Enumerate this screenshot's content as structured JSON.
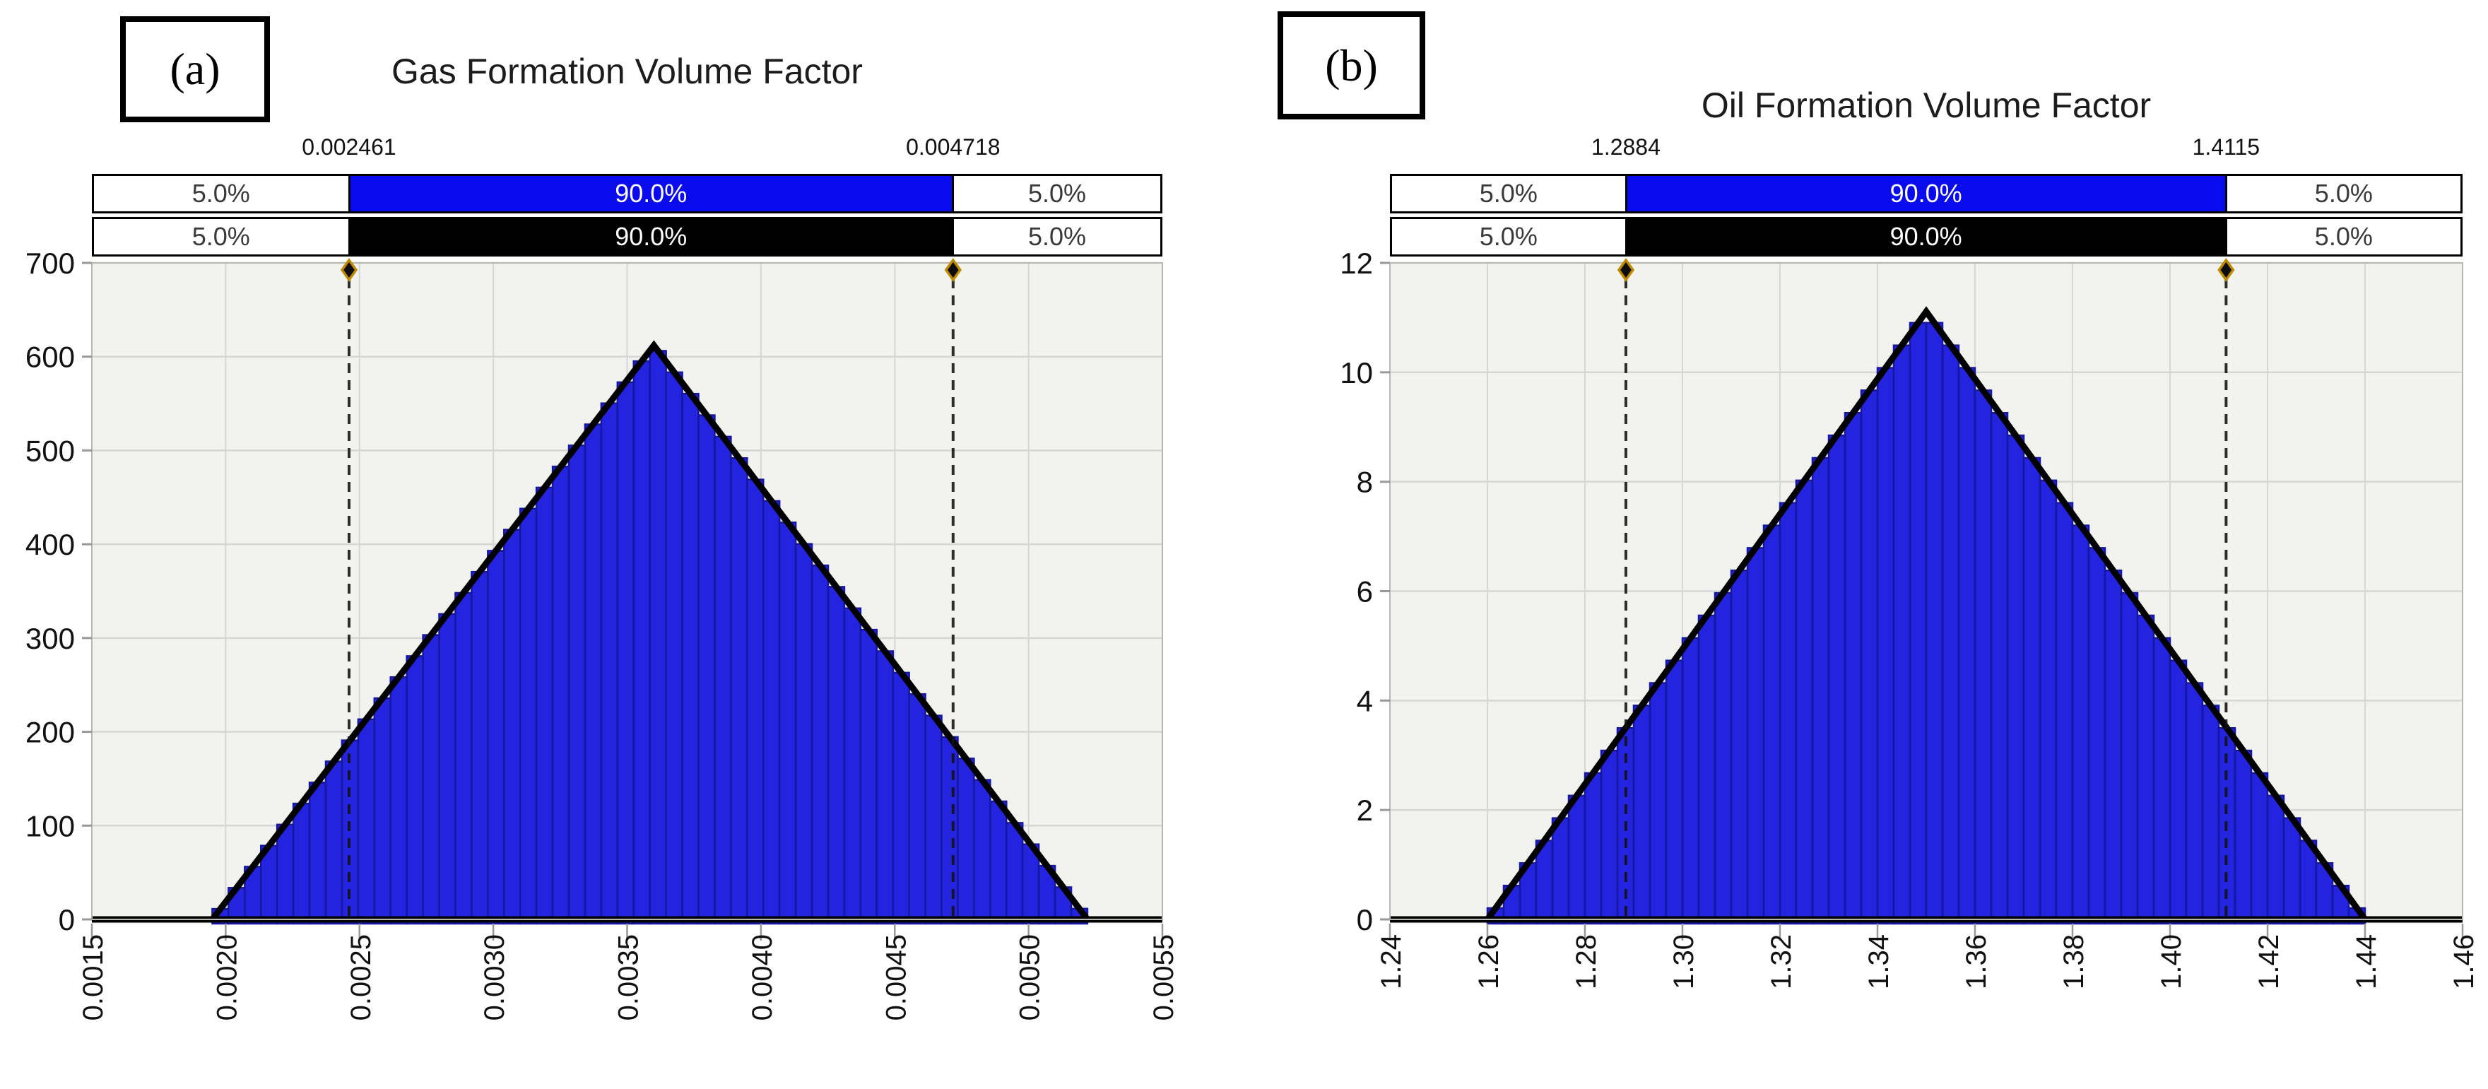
{
  "figure": {
    "background": "#ffffff"
  },
  "chart_data": [
    {
      "type": "bar",
      "subtype": "triangular-histogram",
      "panel_label": "(a)",
      "title": "Gas Formation Volume Factor",
      "x_axis": {
        "min": 0.0015,
        "max": 0.0055,
        "tick_labels": [
          "0.0015",
          "0.0020",
          "0.0025",
          "0.0030",
          "0.0035",
          "0.0040",
          "0.0045",
          "0.0050",
          "0.0055"
        ]
      },
      "y_axis": {
        "min": 0,
        "max": 700,
        "tick_labels": [
          "0",
          "100",
          "200",
          "300",
          "400",
          "500",
          "600",
          "700"
        ]
      },
      "distribution": {
        "shape": "triangular",
        "min": 0.00195,
        "mode": 0.0036,
        "max": 0.00522,
        "peak_height": 612,
        "bins": 54
      },
      "delimiters": {
        "low": 0.002461,
        "high": 0.004718,
        "low_label": "0.002461",
        "high_label": "0.004718"
      },
      "band_rows": [
        {
          "left": "5.0%",
          "middle": "90.0%",
          "right": "5.0%",
          "middle_bg": "#0a0aee",
          "middle_text": "#ffffff"
        },
        {
          "left": "5.0%",
          "middle": "90.0%",
          "right": "5.0%",
          "middle_bg": "#000000",
          "middle_text": "#ffffff"
        }
      ],
      "colors": {
        "bar_fill": "#2323e0",
        "bar_edge": "#17179e",
        "outline": "#000000",
        "plot_bg": "#f2f2ef",
        "grid": "#d6d6d6",
        "diamond_fill": "#0d0d0d",
        "diamond_edge": "#bf8900"
      }
    },
    {
      "type": "bar",
      "subtype": "triangular-histogram",
      "panel_label": "(b)",
      "title": "Oil Formation Volume Factor",
      "x_axis": {
        "min": 1.24,
        "max": 1.46,
        "tick_labels": [
          "1.24",
          "1.26",
          "1.28",
          "1.30",
          "1.32",
          "1.34",
          "1.36",
          "1.38",
          "1.40",
          "1.42",
          "1.44",
          "1.46"
        ]
      },
      "y_axis": {
        "min": 0,
        "max": 12,
        "tick_labels": [
          "0",
          "2",
          "4",
          "6",
          "8",
          "10",
          "12"
        ]
      },
      "distribution": {
        "shape": "triangular",
        "min": 1.26,
        "mode": 1.35,
        "max": 1.44,
        "peak_height": 11.11,
        "bins": 54
      },
      "delimiters": {
        "low": 1.2884,
        "high": 1.4115,
        "low_label": "1.2884",
        "high_label": "1.4115"
      },
      "band_rows": [
        {
          "left": "5.0%",
          "middle": "90.0%",
          "right": "5.0%",
          "middle_bg": "#0a0aee",
          "middle_text": "#ffffff"
        },
        {
          "left": "5.0%",
          "middle": "90.0%",
          "right": "5.0%",
          "middle_bg": "#000000",
          "middle_text": "#ffffff"
        }
      ],
      "colors": {
        "bar_fill": "#2323e0",
        "bar_edge": "#17179e",
        "outline": "#000000",
        "plot_bg": "#f2f2ef",
        "grid": "#d6d6d6",
        "diamond_fill": "#0d0d0d",
        "diamond_edge": "#bf8900"
      }
    }
  ]
}
